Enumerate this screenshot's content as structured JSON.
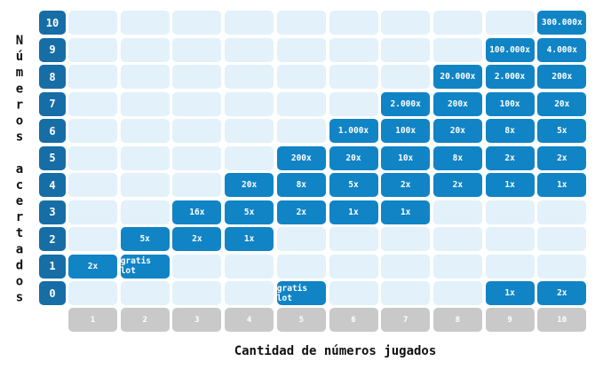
{
  "y_axis_title": "Números acertados",
  "x_axis_title": "Cantidad de números jugados",
  "columns": [
    "1",
    "2",
    "3",
    "4",
    "5",
    "6",
    "7",
    "8",
    "9",
    "10"
  ],
  "rows": [
    {
      "label": "10",
      "cells": [
        null,
        null,
        null,
        null,
        null,
        null,
        null,
        null,
        null,
        "300.000x"
      ]
    },
    {
      "label": "9",
      "cells": [
        null,
        null,
        null,
        null,
        null,
        null,
        null,
        null,
        "100.000x",
        "4.000x"
      ]
    },
    {
      "label": "8",
      "cells": [
        null,
        null,
        null,
        null,
        null,
        null,
        null,
        "20.000x",
        "2.000x",
        "200x"
      ]
    },
    {
      "label": "7",
      "cells": [
        null,
        null,
        null,
        null,
        null,
        null,
        "2.000x",
        "200x",
        "100x",
        "20x"
      ]
    },
    {
      "label": "6",
      "cells": [
        null,
        null,
        null,
        null,
        null,
        "1.000x",
        "100x",
        "20x",
        "8x",
        "5x"
      ]
    },
    {
      "label": "5",
      "cells": [
        null,
        null,
        null,
        null,
        "200x",
        "20x",
        "10x",
        "8x",
        "2x",
        "2x"
      ]
    },
    {
      "label": "4",
      "cells": [
        null,
        null,
        null,
        "20x",
        "8x",
        "5x",
        "2x",
        "2x",
        "1x",
        "1x"
      ]
    },
    {
      "label": "3",
      "cells": [
        null,
        null,
        "16x",
        "5x",
        "2x",
        "1x",
        "1x",
        null,
        null,
        null
      ]
    },
    {
      "label": "2",
      "cells": [
        null,
        "5x",
        "2x",
        "1x",
        null,
        null,
        null,
        null,
        null,
        null
      ]
    },
    {
      "label": "1",
      "cells": [
        "2x",
        "gratis lot",
        null,
        null,
        null,
        null,
        null,
        null,
        null,
        null
      ]
    },
    {
      "label": "0",
      "cells": [
        null,
        null,
        null,
        null,
        "gratis lot",
        null,
        null,
        null,
        "1x",
        "2x"
      ]
    }
  ]
}
